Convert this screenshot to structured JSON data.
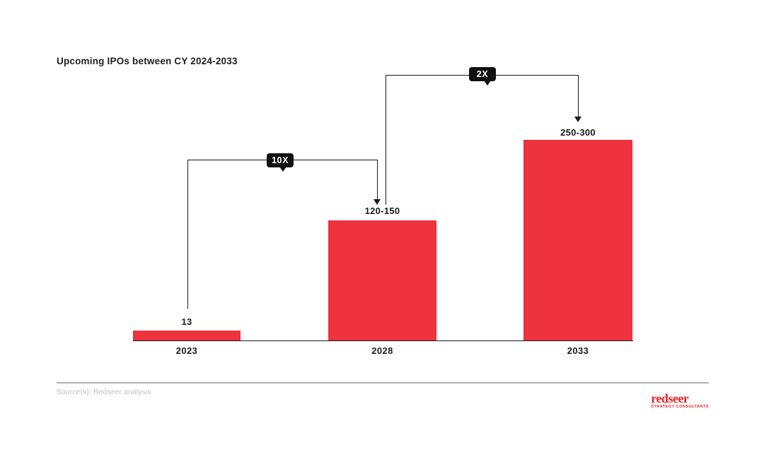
{
  "title": "Upcoming IPOs between CY 2024-2033",
  "chart_data": {
    "type": "bar",
    "title": "Upcoming IPOs between CY 2024-2033",
    "categories": [
      "2023",
      "2028",
      "2033"
    ],
    "values": [
      13,
      135,
      275
    ],
    "value_labels": [
      "13",
      "120-150",
      "250-300"
    ],
    "xlabel": "",
    "ylabel": "",
    "ylim": [
      0,
      300
    ],
    "grid": false,
    "legend": false,
    "bar_color": "#EE333E",
    "annotations": [
      {
        "label": "10X",
        "from": "2023",
        "to": "2028"
      },
      {
        "label": "2X",
        "from": "2028",
        "to": "2033"
      }
    ]
  },
  "footer": {
    "source": "Source(s): Redseer analysis",
    "logo_text": "redseer",
    "logo_tagline": "Strategy Consultants"
  },
  "colors": {
    "bar": "#EE333E",
    "line": "#1A1A1A",
    "badge_bg": "#111111",
    "badge_text": "#FFFFFF",
    "divider": "#B3B3B3",
    "source_text": "#BDBDBD",
    "logo_red": "#E62329"
  }
}
